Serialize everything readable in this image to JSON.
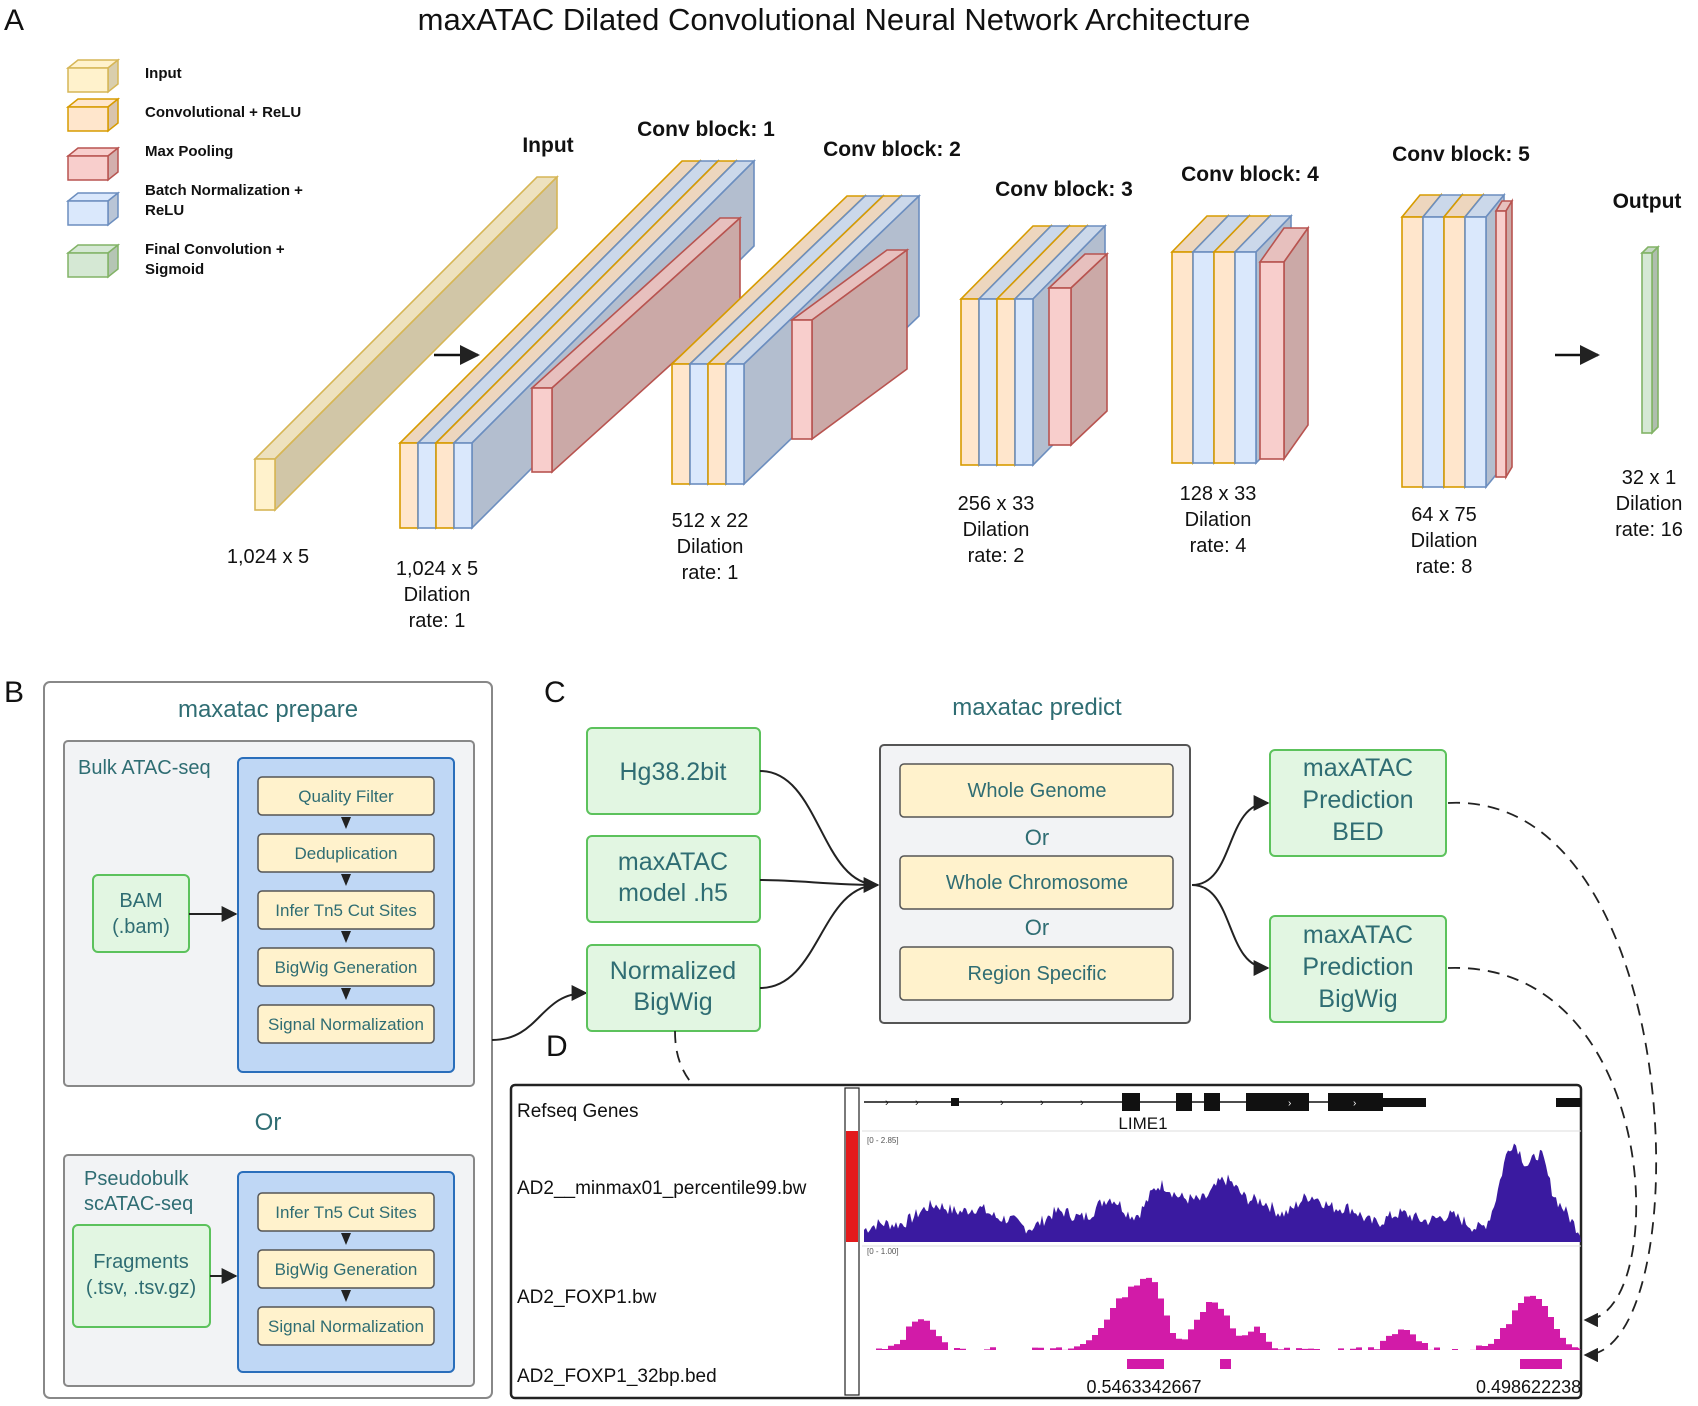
{
  "colors": {
    "input_fill": "#fff2cc",
    "input_stroke": "#d6b656",
    "conv_fill": "#ffe6cc",
    "conv_stroke": "#d79b00",
    "pool_fill": "#f8cecc",
    "pool_stroke": "#b85450",
    "bn_fill": "#dae8fc",
    "bn_stroke": "#6c8ebf",
    "final_fill": "#d5e8d4",
    "final_stroke": "#82b366",
    "teal_text": "#2f6d73",
    "green_box": "#e2f6e2",
    "green_stroke": "#5cc25c",
    "gray_panel": "#f2f3f5",
    "blue_panel": "#bfd7f5",
    "blue_stroke": "#2a6ebb",
    "navy_track": "#3a1aa0",
    "magenta_track": "#d21ba8",
    "red_bar": "#e31a1c"
  },
  "panelA": {
    "letter": "A",
    "title": "maxATAC Dilated Convolutional Neural Network Architecture",
    "legend": [
      {
        "lines": [
          "Input"
        ],
        "type": "input"
      },
      {
        "lines": [
          "Convolutional + ReLU"
        ],
        "type": "conv"
      },
      {
        "lines": [
          "Max Pooling"
        ],
        "type": "pool"
      },
      {
        "lines": [
          "Batch Normalization +",
          "ReLU"
        ],
        "type": "bn"
      },
      {
        "lines": [
          "Final Convolution +",
          "Sigmoid"
        ],
        "type": "final"
      }
    ],
    "blocks": [
      {
        "title": "Input",
        "dims": [
          "1,024 x 5"
        ]
      },
      {
        "title": "Conv block: 1",
        "dims": [
          "1,024 x 5",
          "Dilation",
          "rate: 1"
        ]
      },
      {
        "title": "Conv block: 2",
        "dims": [
          "512 x 22",
          "Dilation",
          "rate: 1"
        ]
      },
      {
        "title": "Conv block: 3",
        "dims": [
          "256 x 33",
          "Dilation",
          "rate: 2"
        ]
      },
      {
        "title": "Conv block: 4",
        "dims": [
          "128 x 33",
          "Dilation",
          "rate: 4"
        ]
      },
      {
        "title": "Conv block: 5",
        "dims": [
          "64 x 75",
          "Dilation",
          "rate: 8"
        ]
      },
      {
        "title": "Output",
        "dims": [
          "32 x 1",
          "Dilation",
          "rate: 16"
        ]
      }
    ]
  },
  "panelB": {
    "letter": "B",
    "title": "maxatac prepare",
    "bulk": {
      "label": "Bulk ATAC-seq",
      "input_lines": [
        "BAM",
        "(.bam)"
      ],
      "steps": [
        "Quality Filter",
        "Deduplication",
        "Infer Tn5 Cut Sites",
        "BigWig Generation",
        "Signal Normalization"
      ]
    },
    "or": "Or",
    "pseudo": {
      "label_lines": [
        "Pseudobulk",
        "scATAC-seq"
      ],
      "input_lines": [
        "Fragments",
        "(.tsv, .tsv.gz)"
      ],
      "steps": [
        "Infer Tn5 Cut Sites",
        "BigWig Generation",
        "Signal Normalization"
      ]
    }
  },
  "panelC": {
    "letter": "C",
    "title": "maxatac predict",
    "inputs": [
      {
        "lines": [
          "Hg38.2bit"
        ]
      },
      {
        "lines": [
          "maxATAC",
          "model .h5"
        ]
      },
      {
        "lines": [
          "Normalized",
          "BigWig"
        ]
      }
    ],
    "options": [
      "Whole Genome",
      "Whole Chromosome",
      "Region Specific"
    ],
    "or": "Or",
    "outputs": [
      {
        "lines": [
          "maxATAC",
          "Prediction",
          "BED"
        ]
      },
      {
        "lines": [
          "maxATAC",
          "Prediction",
          "BigWig"
        ]
      }
    ]
  },
  "panelD": {
    "letter": "D",
    "tracks": [
      "Refseq Genes",
      "AD2__minmax01_percentile99.bw",
      "AD2_FOXP1.bw",
      "AD2_FOXP1_32bp.bed"
    ],
    "gene": "LIME1",
    "range1": "[0 - 2.85]",
    "range2": "[0 - 1.00]",
    "bed_values": [
      "0.5463342667",
      "0.498622238"
    ]
  }
}
